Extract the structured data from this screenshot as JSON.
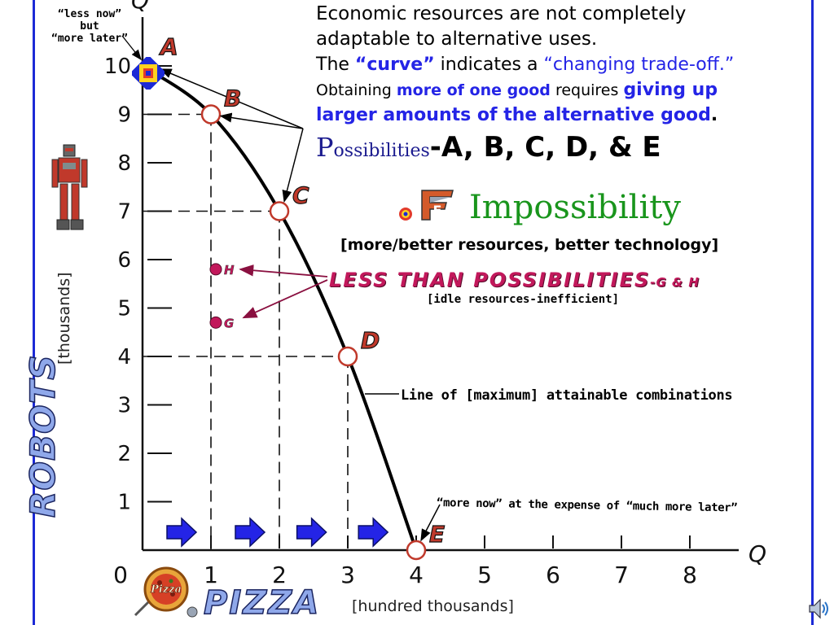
{
  "text": {
    "line1": "Economic resources are not completely",
    "line2": "adaptable to alternative uses.",
    "line3_pre": "The ",
    "line3_curve": "“curve”",
    "line3_mid": " indicates a ",
    "line3_tradeoff": "“changing trade-off.”",
    "line4_pre": "Obtaining ",
    "line4_more": "more of one good",
    "line4_mid": " requires ",
    "line4_giving": "giving up",
    "line5_larger": "larger amounts of the alternative good",
    "line5_dot": ".",
    "poss_cap": "P",
    "poss_rest": "ossibilities",
    "poss_list": "-A, B, C, D, & E",
    "impossibility_letter": "F",
    "impossibility": "Impossibility",
    "resources": "[more/better resources, better technology]",
    "less_than": "LESS THAN POSSIBILITIES",
    "less_than_gh": "-G & H",
    "idle": "[idle resources-inefficient]",
    "line_of": "Line of [maximum] attainable combinations",
    "more_now": "“more now” at the expense of “much more later”",
    "less_now_1": "“less now”",
    "less_now_2": "but",
    "less_now_3": "“more later”",
    "robots": "ROBOTS",
    "thousands": "[thousands]",
    "pizza": "PIZZA",
    "hundred_thousands": "[hundred thousands]",
    "pizza_logo": "Pizza"
  },
  "chart_data": {
    "type": "line",
    "xlabel": "PIZZA [hundred thousands]",
    "ylabel": "ROBOTS [thousands]",
    "x_axis_letter": "Q",
    "y_axis_letter": "Q",
    "xlim": [
      0,
      8
    ],
    "ylim": [
      0,
      10
    ],
    "x_ticks": [
      0,
      1,
      2,
      3,
      4,
      5,
      6,
      7,
      8
    ],
    "y_ticks": [
      1,
      2,
      3,
      4,
      5,
      6,
      7,
      8,
      9,
      10
    ],
    "series": [
      {
        "x": [
          0,
          1,
          2,
          3,
          4
        ],
        "y": [
          10,
          9,
          7,
          4,
          0
        ]
      }
    ],
    "points": [
      {
        "label": "A",
        "x": 0,
        "y": 10
      },
      {
        "label": "B",
        "x": 1,
        "y": 9
      },
      {
        "label": "C",
        "x": 2,
        "y": 7
      },
      {
        "label": "D",
        "x": 3,
        "y": 4
      },
      {
        "label": "E",
        "x": 4,
        "y": 0
      }
    ],
    "inefficient_points": [
      {
        "label": "H",
        "x": 1,
        "y": 5.8
      },
      {
        "label": "G",
        "x": 1,
        "y": 4.7
      }
    ],
    "colors": {
      "curve": "#000000",
      "point_ring": "#c0392b",
      "inefficient": "#c2185b",
      "arrow": "#2424e6",
      "frame": "#1c2ad6"
    }
  }
}
